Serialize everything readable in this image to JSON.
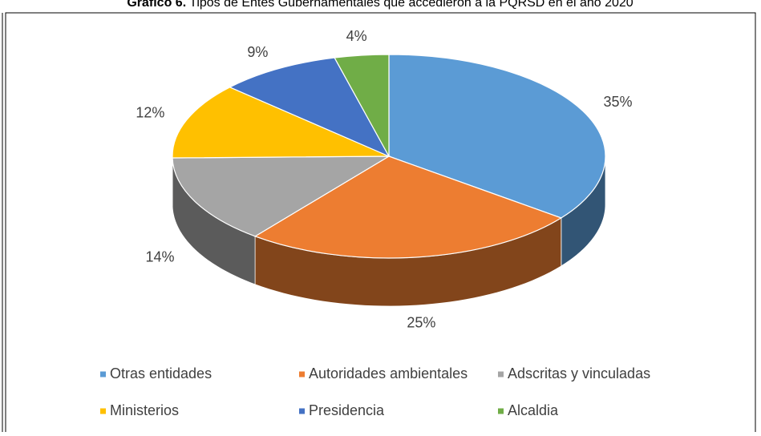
{
  "chart_data": {
    "type": "pie3d",
    "title_label": "Gráfico 6.",
    "title": "Tipos de Entes Gubernamentales que accedieron a la PQRSD en el año 2020",
    "categories": [
      "Otras entidades",
      "Autoridades ambientales",
      "Adscritas y vinculadas",
      "Ministerios",
      "Presidencia",
      "Alcaldia"
    ],
    "values": [
      35,
      25,
      14,
      12,
      9,
      4
    ],
    "value_labels": [
      "35%",
      "25%",
      "14%",
      "12%",
      "9%",
      "4%"
    ],
    "colors": [
      "#5b9bd5",
      "#ed7d31",
      "#a5a5a5",
      "#ffc000",
      "#4472c4",
      "#70ad47"
    ],
    "legend": "bottom"
  }
}
